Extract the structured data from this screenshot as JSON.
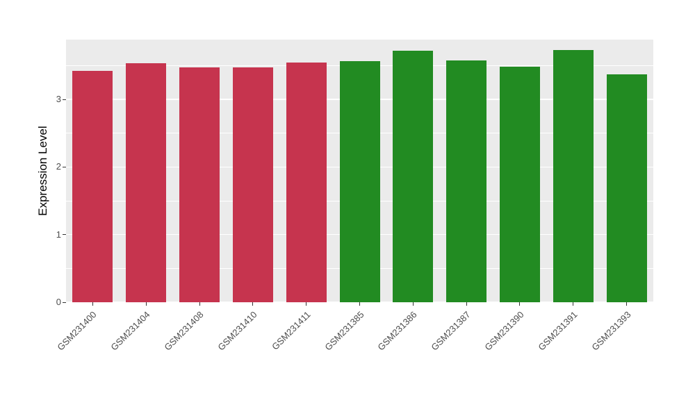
{
  "chart_data": {
    "type": "bar",
    "title": "",
    "xlabel": "",
    "ylabel": "Expression Level",
    "categories": [
      "GSM231400",
      "GSM231404",
      "GSM231408",
      "GSM231410",
      "GSM231411",
      "GSM231385",
      "GSM231386",
      "GSM231387",
      "GSM231390",
      "GSM231391",
      "GSM231393"
    ],
    "values": [
      3.42,
      3.53,
      3.47,
      3.47,
      3.55,
      3.57,
      3.72,
      3.58,
      3.48,
      3.73,
      3.37
    ],
    "bar_groups": [
      "red",
      "red",
      "red",
      "red",
      "red",
      "green",
      "green",
      "green",
      "green",
      "green",
      "green"
    ],
    "group_colors": {
      "red": "#C6344E",
      "green": "#228B22"
    },
    "yticks": [
      0,
      1,
      2,
      3
    ],
    "ylim": [
      0,
      3.884
    ],
    "grid": "on",
    "legend": "none",
    "panel_background": "#EBEBEB",
    "gridline_color": "#FFFFFF"
  }
}
